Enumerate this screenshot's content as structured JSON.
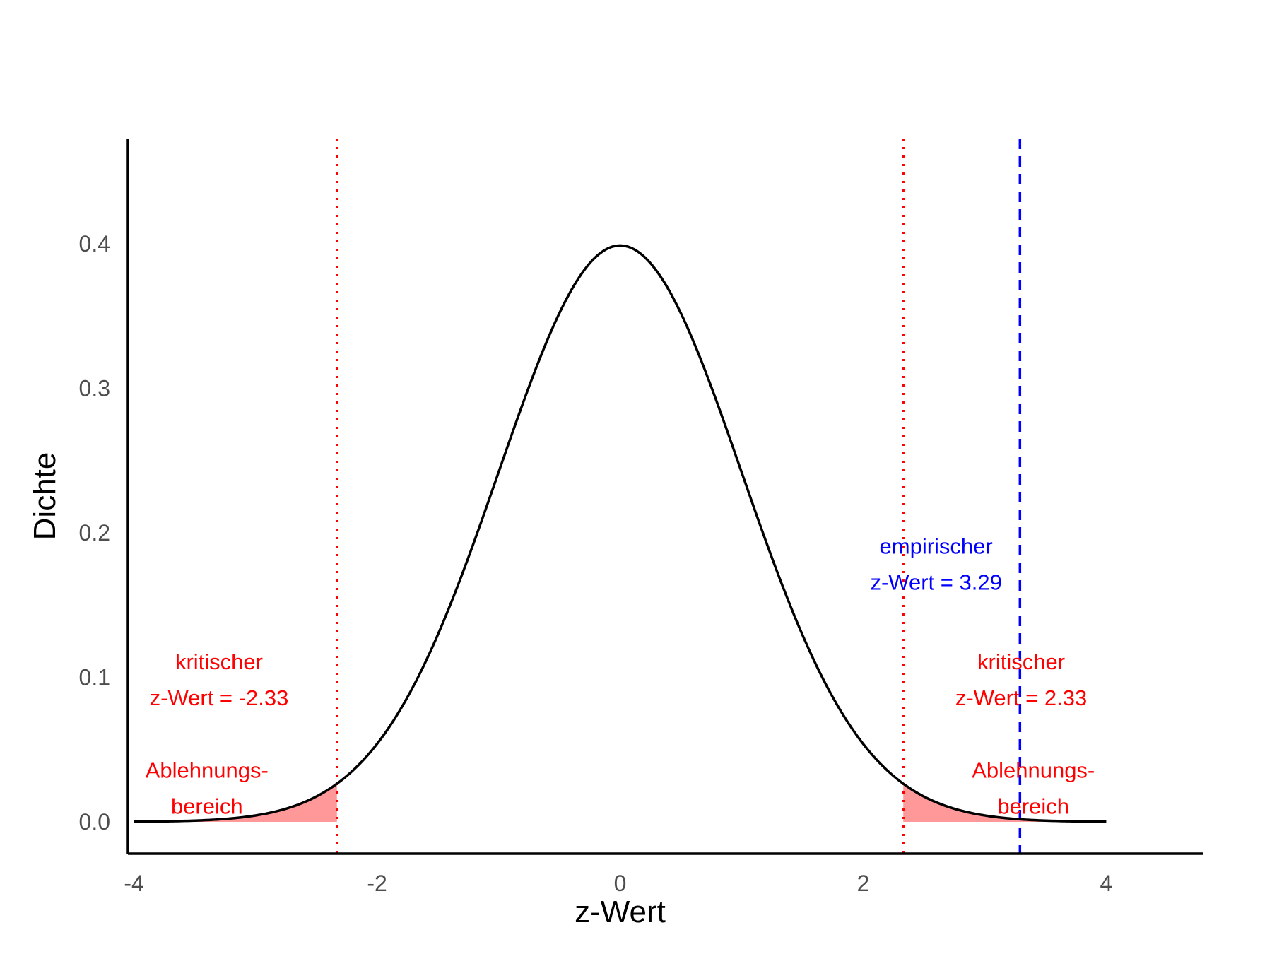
{
  "chart_data": {
    "type": "line",
    "xlabel": "z-Wert",
    "ylabel": "Dichte",
    "xlim": [
      -4.05,
      4.8
    ],
    "ylim": [
      -0.022,
      0.473
    ],
    "x_ticks": [
      -4,
      -2,
      0,
      2,
      4
    ],
    "x_tick_labels": [
      "-4",
      "-2",
      "0",
      "2",
      "4"
    ],
    "y_ticks": [
      0.0,
      0.1,
      0.2,
      0.3,
      0.4
    ],
    "y_tick_labels": [
      "0.0",
      "0.1",
      "0.2",
      "0.3",
      "0.4"
    ],
    "grid": false,
    "curve": {
      "distribution": "standard normal density",
      "mean": 0,
      "sd": 1,
      "x_range": [
        -4,
        4
      ],
      "color": "#000000"
    },
    "rejection_regions": [
      {
        "from": -4,
        "to": -2.33,
        "color": "#ff9999"
      },
      {
        "from": 2.33,
        "to": 4,
        "color": "#ff9999"
      }
    ],
    "vlines": [
      {
        "x": -2.33,
        "style": "dotted",
        "color": "#ff0000"
      },
      {
        "x": 2.33,
        "style": "dotted",
        "color": "#ff0000"
      },
      {
        "x": 3.29,
        "style": "dashed",
        "color": "#0000ff"
      }
    ],
    "annotations": [
      {
        "id": "critical-left",
        "lines": [
          "kritischer",
          "z-Wert = -2.33"
        ],
        "x": -3.3,
        "y": [
          0.111,
          0.086
        ],
        "color": "#ff0000"
      },
      {
        "id": "critical-right",
        "lines": [
          "kritischer",
          "z-Wert = 2.33"
        ],
        "x": 3.3,
        "y": [
          0.111,
          0.086
        ],
        "color": "#ff0000"
      },
      {
        "id": "rejection-left",
        "lines": [
          "Ablehnungs-",
          "bereich"
        ],
        "x": -3.4,
        "y": [
          0.036,
          0.011
        ],
        "color": "#ff0000"
      },
      {
        "id": "rejection-right",
        "lines": [
          "Ablehnungs-",
          "bereich"
        ],
        "x": 3.4,
        "y": [
          0.036,
          0.011
        ],
        "color": "#ff0000"
      },
      {
        "id": "empirical",
        "lines": [
          "empirischer",
          "z-Wert = 3.29"
        ],
        "x": 2.6,
        "y": [
          0.191,
          0.166
        ],
        "color": "#0000ff"
      }
    ]
  }
}
